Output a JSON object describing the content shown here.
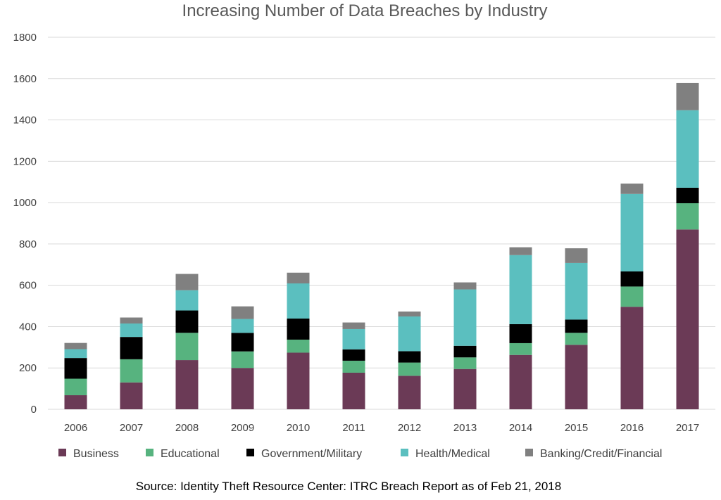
{
  "chart_data": {
    "type": "bar",
    "stacked": true,
    "title": "Increasing Number of Data Breaches by Industry",
    "xlabel": "",
    "ylabel": "",
    "ylim": [
      0,
      1800
    ],
    "yticks": [
      0,
      200,
      400,
      600,
      800,
      1000,
      1200,
      1400,
      1600,
      1800
    ],
    "grid": true,
    "legend_position": "bottom",
    "categories": [
      "2006",
      "2007",
      "2008",
      "2009",
      "2010",
      "2011",
      "2012",
      "2013",
      "2014",
      "2015",
      "2016",
      "2017"
    ],
    "series": [
      {
        "name": "Business",
        "color": "#6b3a56",
        "values": [
          68,
          130,
          238,
          200,
          274,
          177,
          162,
          195,
          263,
          312,
          496,
          870
        ]
      },
      {
        "name": "Educational",
        "color": "#57b37f",
        "values": [
          80,
          112,
          132,
          80,
          63,
          58,
          64,
          56,
          57,
          58,
          98,
          127
        ]
      },
      {
        "name": "Government/Military",
        "color": "#000000",
        "values": [
          100,
          108,
          108,
          90,
          102,
          55,
          55,
          56,
          92,
          64,
          73,
          75
        ]
      },
      {
        "name": "Health/Medical",
        "color": "#5bbfbf",
        "values": [
          43,
          65,
          98,
          67,
          170,
          98,
          168,
          273,
          334,
          274,
          375,
          375
        ]
      },
      {
        "name": "Banking/Credit/Financial",
        "color": "#808080",
        "values": [
          30,
          29,
          79,
          61,
          52,
          32,
          24,
          34,
          38,
          71,
          50,
          132
        ]
      }
    ],
    "source": "Source:   Identity Theft Resource Center:   ITRC Breach Report as of Feb 21, 2018"
  }
}
